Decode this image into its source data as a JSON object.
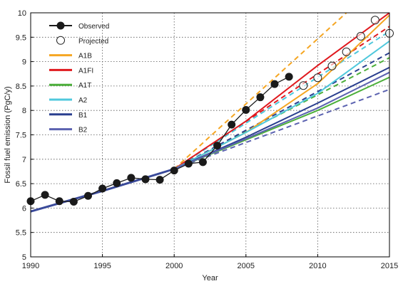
{
  "chart_data": {
    "type": "line",
    "xlabel": "Year",
    "ylabel": "Fossil fuel emission (PgC/y)",
    "xlim": [
      1990,
      2015
    ],
    "ylim": [
      5,
      10
    ],
    "grid": true,
    "legend_position": "top-left",
    "x_ticks": [
      1990,
      1995,
      2000,
      2005,
      2010,
      2015
    ],
    "y_ticks": [
      5,
      5.5,
      6,
      6.5,
      7,
      7.5,
      8,
      8.5,
      9,
      9.5,
      10
    ],
    "x_tick_labels": [
      "1990",
      "1995",
      "2000",
      "2005",
      "2010",
      "2015"
    ],
    "y_tick_labels": [
      "5",
      "5.5",
      "6",
      "6.5",
      "7",
      "7.5",
      "8",
      "8.5",
      "9",
      "9.5",
      "10"
    ],
    "legend": [
      {
        "label": "Observed",
        "kind": "marker-line"
      },
      {
        "label": "Projected",
        "kind": "open-marker"
      },
      {
        "label": "A1B",
        "kind": "line",
        "color": "#f5a623"
      },
      {
        "label": "A1FI",
        "kind": "line",
        "color": "#e0191e"
      },
      {
        "label": "A1T",
        "kind": "line",
        "color": "#4caf3a"
      },
      {
        "label": "A2",
        "kind": "line",
        "color": "#4fc8dc"
      },
      {
        "label": "B1",
        "kind": "line",
        "color": "#2a3f8f"
      },
      {
        "label": "B2",
        "kind": "line",
        "color": "#5b62b0"
      }
    ],
    "observed": {
      "name": "Observed",
      "color": "#1a1a1a",
      "x": [
        1990,
        1991,
        1992,
        1993,
        1994,
        1995,
        1996,
        1997,
        1998,
        1999,
        2000,
        2001,
        2002,
        2003,
        2004,
        2005,
        2006,
        2007,
        2008
      ],
      "y": [
        6.14,
        6.27,
        6.14,
        6.13,
        6.25,
        6.4,
        6.51,
        6.62,
        6.59,
        6.58,
        6.77,
        6.91,
        6.94,
        7.28,
        7.71,
        8.01,
        8.27,
        8.54,
        8.69
      ]
    },
    "projected": {
      "name": "Projected",
      "x": [
        2009,
        2010,
        2011,
        2012,
        2013,
        2014,
        2015
      ],
      "y": [
        8.51,
        8.67,
        8.91,
        9.2,
        9.52,
        9.85,
        9.58
      ]
    },
    "scenario_base": {
      "x": [
        1990,
        1995,
        2000
      ],
      "y": [
        5.93,
        6.35,
        6.8
      ]
    },
    "series": [
      {
        "name": "A1FI",
        "color": "#e0191e",
        "solid": {
          "x": [
            2000,
            2005,
            2010,
            2015
          ],
          "y": [
            6.8,
            7.78,
            8.92,
            10.0
          ]
        },
        "dashed": {
          "x": [
            2000,
            2015
          ],
          "y": [
            6.8,
            9.72
          ]
        }
      },
      {
        "name": "A1B",
        "color": "#f5a623",
        "solid": {
          "x": [
            2000,
            2005,
            2010,
            2015
          ],
          "y": [
            6.8,
            7.55,
            8.55,
            9.95
          ]
        },
        "dashed": {
          "x": [
            2000,
            2012
          ],
          "y": [
            6.8,
            10.0
          ]
        }
      },
      {
        "name": "A2",
        "color": "#4fc8dc",
        "solid": {
          "x": [
            2000,
            2005,
            2010,
            2015
          ],
          "y": [
            6.8,
            7.55,
            8.35,
            9.42
          ]
        },
        "dashed": {
          "x": [
            2000,
            2015
          ],
          "y": [
            6.8,
            9.62
          ]
        }
      },
      {
        "name": "A1T",
        "color": "#4caf3a",
        "solid": {
          "x": [
            2000,
            2005,
            2010,
            2015
          ],
          "y": [
            6.8,
            7.4,
            8.0,
            8.68
          ]
        },
        "dashed": {
          "x": [
            2000,
            2015
          ],
          "y": [
            6.8,
            9.08
          ]
        }
      },
      {
        "name": "B1",
        "color": "#2a3f8f",
        "solid": {
          "x": [
            2000,
            2005,
            2010,
            2015
          ],
          "y": [
            6.8,
            7.45,
            8.15,
            8.88
          ]
        },
        "dashed": {
          "x": [
            2000,
            2015
          ],
          "y": [
            6.8,
            9.18
          ]
        }
      },
      {
        "name": "B2",
        "color": "#5b62b0",
        "solid": {
          "x": [
            2000,
            2005,
            2010,
            2015
          ],
          "y": [
            6.8,
            7.42,
            8.05,
            8.78
          ]
        },
        "dashed": {
          "x": [
            2000,
            2015
          ],
          "y": [
            6.8,
            8.43
          ]
        }
      }
    ]
  }
}
